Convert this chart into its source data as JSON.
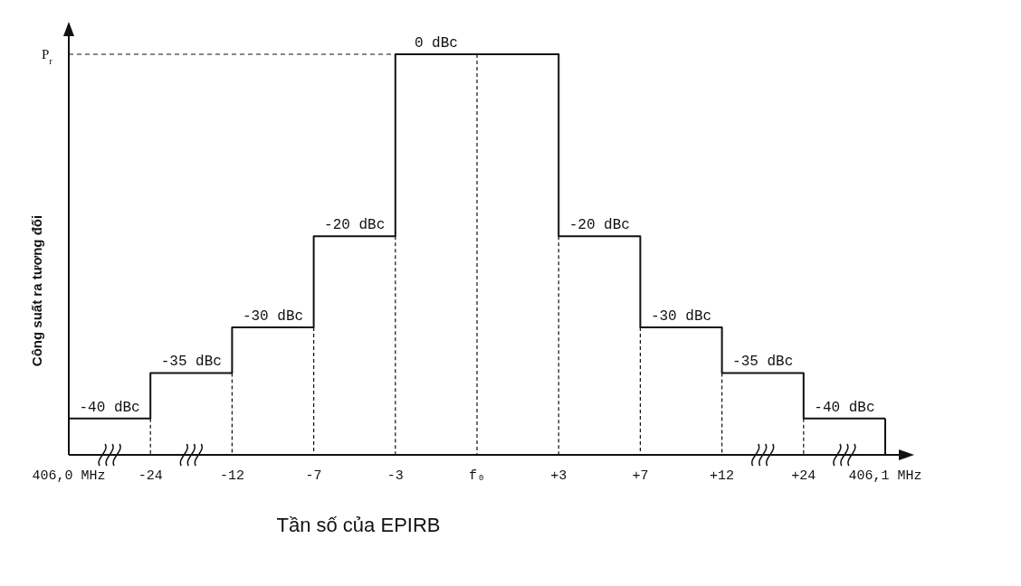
{
  "chart_data": {
    "type": "step",
    "xlabel": "Tần số của EPIRB",
    "ylabel": "Công suất ra tương đối",
    "categories": [
      "406,0 MHz",
      "-24",
      "-12",
      "-7",
      "-3",
      "f₀",
      "+3",
      "+7",
      "+12",
      "+24",
      "406,1 MHz"
    ],
    "values": [
      -40,
      -35,
      -30,
      -20,
      0,
      0,
      -20,
      -30,
      -35,
      -40,
      -40
    ],
    "value_labels": [
      "-40 dBc",
      "-35 dBc",
      "-30 dBc",
      "-20 dBc",
      "0 dBc",
      null,
      "-20 dBc",
      "-30 dBc",
      "-35 dBc",
      "-40 dBc",
      null
    ],
    "ylim": [
      -44,
      0
    ],
    "tick_labels": "x",
    "color": "#111111",
    "line_style": "solid",
    "marker": "none",
    "grid": "x",
    "ref_lines": [
      {
        "axis": "y",
        "value": 0,
        "label": "P$_{r}$",
        "line_style": "dashed",
        "color": "#111111"
      }
    ]
  }
}
